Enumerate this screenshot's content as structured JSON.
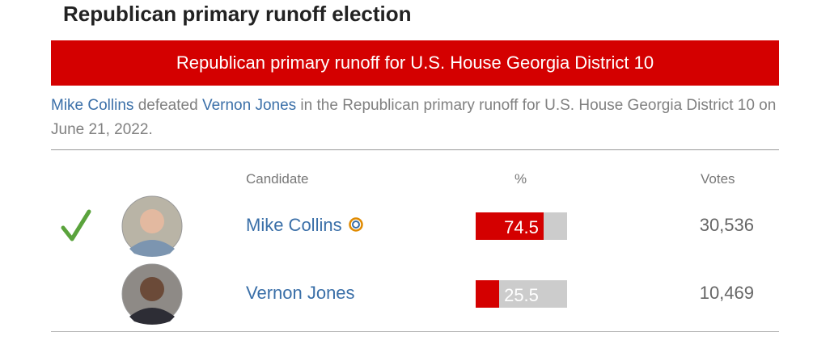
{
  "heading": "Republican primary runoff election",
  "banner": "Republican primary runoff for U.S. House Georgia District 10",
  "summary": {
    "winner": "Mike Collins",
    "verb": " defeated ",
    "loser": "Vernon Jones",
    "rest": " in the Republican primary runoff for U.S. House Georgia District 10 on June 21, 2022."
  },
  "table": {
    "headers": [
      "Candidate",
      "%",
      "Votes"
    ],
    "rows": [
      {
        "name": "Mike Collins",
        "percent": 74.5,
        "votes": "30,536",
        "winner": true,
        "incumbent": true
      },
      {
        "name": "Vernon Jones",
        "percent": 25.5,
        "votes": "10,469",
        "winner": false,
        "incumbent": false
      }
    ]
  }
}
